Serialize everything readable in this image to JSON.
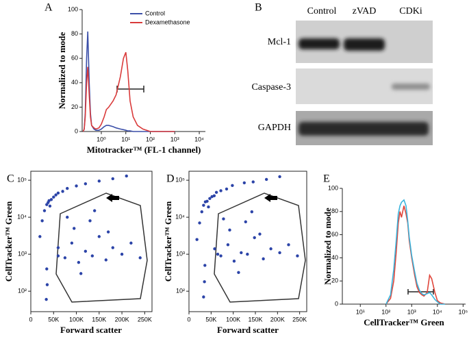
{
  "chart_data": [
    {
      "type": "line",
      "panel_label": "A",
      "ylabel": "Normalized to mode",
      "xlabel": "Mitotracker™ (FL-1 channel)",
      "xlog": true,
      "xlim": [
        0.165,
        17800
      ],
      "ylim": [
        0,
        100
      ],
      "legend": "upper right",
      "xticks": [
        {
          "value": 1,
          "label": "10⁰"
        },
        {
          "value": 10,
          "label": "10¹"
        },
        {
          "value": 100,
          "label": "10²"
        },
        {
          "value": 1000,
          "label": "10³"
        },
        {
          "value": 10000,
          "label": "10⁴"
        }
      ],
      "yticks": [
        0,
        20,
        40,
        60,
        80,
        100
      ],
      "x": [
        0.18,
        0.2,
        0.22,
        0.25,
        0.28,
        0.32,
        0.36,
        0.4,
        0.5,
        0.6,
        0.8,
        1,
        1.3,
        1.6,
        2,
        3,
        4,
        6,
        8,
        10,
        12,
        15,
        20,
        30,
        50,
        100,
        300,
        1000
      ],
      "series": [
        {
          "name": "Control",
          "color": "#3b4fa8",
          "values": [
            0,
            2,
            15,
            60,
            82,
            40,
            15,
            5,
            2,
            1,
            1,
            2,
            4,
            5,
            5,
            4,
            3,
            2,
            1.5,
            1,
            0.5,
            0.5,
            0,
            0,
            0,
            0,
            0,
            0
          ]
        },
        {
          "name": "Dexamethasone",
          "color": "#d93a3a",
          "values": [
            0,
            2,
            12,
            40,
            53,
            30,
            12,
            5,
            3,
            2,
            3,
            6,
            12,
            18,
            20,
            25,
            30,
            45,
            60,
            65,
            50,
            25,
            12,
            5,
            2,
            0,
            0,
            0
          ]
        }
      ]
    },
    {
      "type": "scatter",
      "panel_label": "C",
      "ylabel": "CellTracker™ Green",
      "xlabel": "Forward scatter",
      "ylog": true,
      "xlim": [
        0,
        266000
      ],
      "ylim": [
        28,
        175000
      ],
      "xticks": [
        0,
        {
          "value": 50000,
          "label": "50K"
        },
        {
          "value": 100000,
          "label": "100K"
        },
        {
          "value": 150000,
          "label": "150K"
        },
        {
          "value": 200000,
          "label": "200K"
        },
        {
          "value": 250000,
          "label": "250K"
        }
      ],
      "yticks": [
        {
          "value": 100,
          "label": "10²"
        },
        {
          "value": 1000,
          "label": "10³"
        },
        {
          "value": 10000,
          "label": "10⁴"
        },
        {
          "value": 100000,
          "label": "10⁵"
        }
      ],
      "x": [
        20000,
        25000,
        30000,
        35000,
        38000,
        40000,
        42000,
        45000,
        50000,
        55000,
        60000,
        70000,
        80000,
        100000,
        120000,
        150000,
        180000,
        210000,
        35000,
        36000,
        34000,
        60000,
        75000,
        90000,
        105000,
        120000,
        135000,
        150000,
        165000,
        180000,
        200000,
        220000,
        240000,
        95000,
        130000,
        170000,
        110000,
        80000,
        140000,
        60000
      ],
      "series": [
        {
          "color": "#2c44a8",
          "values": [
            3000,
            8000,
            15000,
            22000,
            25000,
            28000,
            20000,
            30000,
            35000,
            40000,
            45000,
            50000,
            60000,
            70000,
            80000,
            95000,
            110000,
            130000,
            400,
            150,
            60,
            1500,
            800,
            2000,
            600,
            1200,
            900,
            3000,
            700,
            1500,
            1000,
            2000,
            800,
            5000,
            8000,
            4000,
            300,
            10000,
            15000,
            900
          ]
        }
      ]
    },
    {
      "type": "scatter",
      "panel_label": "D",
      "ylabel": "CellTracker™ Green",
      "xlabel": "Forward scatter",
      "ylog": true,
      "xlim": [
        0,
        266000
      ],
      "ylim": [
        28,
        175000
      ],
      "xticks": [
        0,
        {
          "value": 50000,
          "label": "50K"
        },
        {
          "value": 100000,
          "label": "100K"
        },
        {
          "value": 150000,
          "label": "150K"
        },
        {
          "value": 200000,
          "label": "200K"
        },
        {
          "value": 250000,
          "label": "250K"
        }
      ],
      "yticks": [
        {
          "value": 100,
          "label": "10²"
        },
        {
          "value": 1000,
          "label": "10³"
        },
        {
          "value": 10000,
          "label": "10⁴"
        },
        {
          "value": 100000,
          "label": "10⁵"
        }
      ],
      "x": [
        18000,
        24000,
        29000,
        33000,
        37000,
        41000,
        44000,
        47000,
        52000,
        57000,
        62000,
        72000,
        85000,
        98000,
        125000,
        145000,
        175000,
        205000,
        36000,
        35000,
        33000,
        58000,
        72000,
        88000,
        102000,
        118000,
        132000,
        148000,
        168000,
        185000,
        205000,
        225000,
        245000,
        92000,
        128000,
        160000,
        112000,
        78000,
        142000,
        65000
      ],
      "series": [
        {
          "color": "#2c44a8",
          "values": [
            2500,
            7000,
            14000,
            21000,
            26000,
            27000,
            19000,
            32000,
            36000,
            38000,
            47000,
            52000,
            58000,
            72000,
            85000,
            90000,
            105000,
            125000,
            500,
            180,
            70,
            1400,
            900,
            1800,
            650,
            1100,
            1000,
            2800,
            750,
            1400,
            1100,
            1800,
            900,
            4500,
            7500,
            3500,
            320,
            9000,
            14000,
            1000
          ]
        }
      ]
    },
    {
      "type": "line",
      "panel_label": "E",
      "ylabel": "Normalized to mode",
      "xlabel": "CellTracker™ Green",
      "xlog": true,
      "xlim": [
        2,
        125000
      ],
      "ylim": [
        0,
        100
      ],
      "xticks": [
        {
          "value": 10,
          "label": "10¹"
        },
        {
          "value": 100,
          "label": "10²"
        },
        {
          "value": 1000,
          "label": "10³"
        },
        {
          "value": 10000,
          "label": "10⁴"
        },
        {
          "value": 100000,
          "label": "10⁵"
        }
      ],
      "yticks": [
        0,
        20,
        40,
        60,
        80,
        100
      ],
      "x": [
        100,
        150,
        200,
        250,
        300,
        350,
        400,
        500,
        600,
        700,
        800,
        1000,
        1300,
        1600,
        2000,
        2500,
        3000,
        4000,
        5000,
        6000,
        8000,
        10000,
        13000,
        20000
      ],
      "series": [
        {
          "color": "#e0453a",
          "values": [
            0,
            5,
            20,
            45,
            70,
            80,
            75,
            85,
            78,
            70,
            55,
            40,
            25,
            15,
            10,
            8,
            7,
            10,
            25,
            22,
            10,
            3,
            1,
            0
          ]
        },
        {
          "color": "#3ab4dc",
          "values": [
            0,
            8,
            30,
            55,
            78,
            85,
            88,
            90,
            85,
            72,
            58,
            42,
            28,
            18,
            12,
            9,
            8,
            9,
            10,
            8,
            4,
            2,
            0,
            0
          ]
        }
      ]
    }
  ],
  "blot": {
    "panel_label": "B",
    "columns": [
      "Control",
      "zVAD",
      "CDKi"
    ],
    "rows": [
      "Mcl-1",
      "Caspase-3",
      "GAPDH"
    ]
  }
}
